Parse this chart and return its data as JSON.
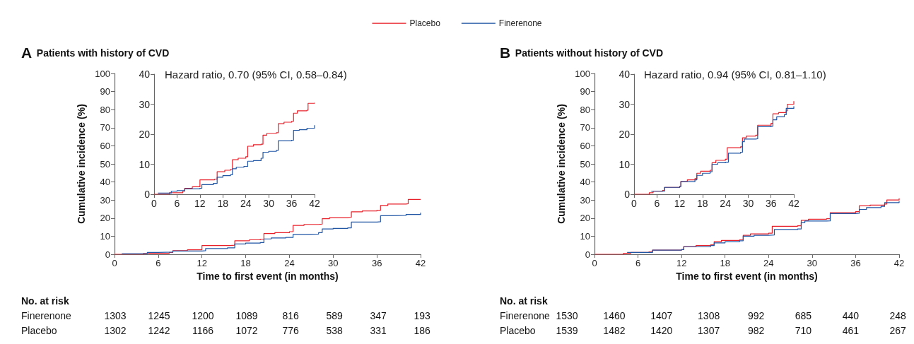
{
  "chart_data": [
    {
      "type": "step",
      "title": "A Patients with history of CVD",
      "xlabel": "Time to first event (in months)",
      "ylabel": "Cumulative incidence (%)",
      "xlim": [
        0,
        42
      ],
      "xticks": [
        0,
        6,
        12,
        18,
        24,
        30,
        36,
        42
      ],
      "ylim": [
        0,
        100
      ],
      "yticks": [
        0,
        10,
        20,
        30,
        40,
        50,
        60,
        70,
        80,
        90,
        100
      ],
      "legend": "top",
      "series": [
        {
          "name": "Placebo",
          "color": "#e8202a",
          "x": [
            0,
            4,
            7.5,
            8,
            10,
            12,
            15.8,
            16.5,
            18.5,
            20,
            20.5,
            22,
            24,
            24.5,
            26,
            28,
            28.5,
            29.5,
            32,
            32.5,
            34,
            36,
            36.5,
            37.5,
            40,
            40.3,
            42
          ],
          "values": [
            0,
            0.5,
            1,
            2,
            2.5,
            4.8,
            5,
            7.5,
            8,
            8.3,
            11.5,
            12,
            12.5,
            16,
            16.5,
            16.7,
            19.7,
            20.3,
            20.5,
            23.5,
            24,
            24.3,
            27,
            27.8,
            28,
            30.3,
            30.5
          ]
        },
        {
          "name": "Finerenone",
          "color": "#2156a5",
          "x": [
            1,
            4.5,
            6,
            8,
            12,
            12.5,
            15.5,
            16.5,
            18,
            20,
            20.5,
            21.5,
            23.5,
            24.5,
            26,
            28,
            28.5,
            30,
            32,
            32.5,
            36,
            36.5,
            38,
            40,
            42
          ],
          "values": [
            0.4,
            1,
            1.2,
            1.8,
            2,
            3.2,
            3.6,
            5.7,
            6.2,
            6.5,
            8.5,
            9,
            9.3,
            11,
            11.2,
            12,
            14,
            14.3,
            14.6,
            17.8,
            18,
            21.3,
            21.5,
            22,
            23
          ]
        }
      ],
      "annotations": [
        "No. at risk",
        "Finerenone",
        "1303",
        "1245",
        "1200",
        "1089",
        "816",
        "589",
        "347",
        "193",
        "Placebo",
        "1302",
        "1242",
        "1166",
        "1072",
        "776",
        "538",
        "331",
        "186"
      ]
    },
    {
      "type": "step",
      "xlim": [
        0,
        42
      ],
      "xticks": [
        0,
        6,
        12,
        18,
        24,
        30,
        36,
        42
      ],
      "ylim": [
        0,
        40
      ],
      "yticks": [
        0,
        10,
        20,
        30,
        40
      ],
      "series": [
        {
          "color": "#e8202a",
          "x": [
            0,
            4,
            7.5,
            8,
            10,
            12,
            15.8,
            16.5,
            18.5,
            20,
            20.5,
            22,
            24,
            24.5,
            26,
            28,
            28.5,
            29.5,
            32,
            32.5,
            34,
            36,
            36.5,
            37.5,
            40,
            40.3,
            42
          ],
          "values": [
            0,
            0.5,
            1,
            2,
            2.5,
            4.8,
            5,
            7.5,
            8,
            8.3,
            11.5,
            12,
            12.5,
            16,
            16.5,
            16.7,
            19.7,
            20.3,
            20.5,
            23.5,
            24,
            24.3,
            27,
            27.8,
            28,
            30.3,
            30.5
          ]
        },
        {
          "color": "#2156a5",
          "x": [
            1,
            4.5,
            6,
            8,
            12,
            12.5,
            15.5,
            16.5,
            18,
            20,
            20.5,
            21.5,
            23.5,
            24.5,
            26,
            28,
            28.5,
            30,
            32,
            32.5,
            36,
            36.5,
            38,
            40,
            42
          ],
          "values": [
            0.4,
            1,
            1.2,
            1.8,
            2,
            3.2,
            3.6,
            5.7,
            6.2,
            6.5,
            8.5,
            9,
            9.3,
            11,
            11.2,
            12,
            14,
            14.3,
            14.6,
            17.8,
            18,
            21.3,
            21.5,
            22,
            23
          ]
        }
      ],
      "annotations": [
        "Hazard ratio, 0.70 (95% CI, 0.58–0.84)"
      ]
    },
    {
      "type": "step",
      "title": "B Patients without history of CVD",
      "xlabel": "Time to first event (in months)",
      "ylabel": "Cumulative incidence (%)",
      "xlim": [
        0,
        42
      ],
      "xticks": [
        0,
        6,
        12,
        18,
        24,
        30,
        36,
        42
      ],
      "ylim": [
        0,
        100
      ],
      "yticks": [
        0,
        10,
        20,
        30,
        40,
        50,
        60,
        70,
        80,
        90,
        100
      ],
      "series": [
        {
          "color": "#e8202a",
          "x": [
            0,
            4,
            5,
            7.5,
            8,
            12,
            12.3,
            14,
            16,
            16.5,
            17.5,
            20,
            20.5,
            21.5,
            24,
            24.5,
            28,
            28.5,
            29.5,
            32,
            32.5,
            36,
            36.5,
            38,
            40,
            40.3,
            42
          ],
          "values": [
            0,
            0.5,
            1,
            1.3,
            2.3,
            2.6,
            4.3,
            4.8,
            5.2,
            7,
            7.7,
            8,
            10.5,
            11.3,
            11.7,
            15.5,
            15.8,
            18.8,
            19.4,
            19.7,
            23,
            23.6,
            26.8,
            27.2,
            27.8,
            30,
            31
          ]
        },
        {
          "color": "#2156a5",
          "x": [
            4.5,
            8,
            12,
            12.3,
            16,
            16.5,
            18,
            20,
            20.5,
            22,
            24,
            24.8,
            28,
            28.5,
            29,
            32,
            32.5,
            36,
            36.5,
            37.5,
            39.5,
            40,
            42
          ],
          "values": [
            1,
            2.3,
            2.6,
            4.2,
            4.8,
            6.3,
            7,
            7.5,
            10,
            10.5,
            10.7,
            13.7,
            14,
            17.5,
            18.4,
            18.5,
            22.5,
            22.7,
            24.8,
            25.8,
            26.5,
            28.6,
            29.3
          ]
        }
      ],
      "annotations": [
        "No. at risk",
        "Finerenone",
        "1530",
        "1460",
        "1407",
        "1308",
        "992",
        "685",
        "440",
        "248",
        "Placebo",
        "1539",
        "1482",
        "1420",
        "1307",
        "982",
        "710",
        "461",
        "267"
      ]
    },
    {
      "type": "step",
      "xlim": [
        0,
        42
      ],
      "xticks": [
        0,
        6,
        12,
        18,
        24,
        30,
        36,
        42
      ],
      "ylim": [
        0,
        40
      ],
      "yticks": [
        0,
        10,
        20,
        30,
        40
      ],
      "series": [
        {
          "color": "#e8202a",
          "x": [
            0,
            4,
            5,
            7.5,
            8,
            12,
            12.3,
            14,
            16,
            16.5,
            17.5,
            20,
            20.5,
            21.5,
            24,
            24.5,
            28,
            28.5,
            29.5,
            32,
            32.5,
            36,
            36.5,
            38,
            40,
            40.3,
            42
          ],
          "values": [
            0,
            0.5,
            1,
            1.3,
            2.3,
            2.6,
            4.3,
            4.8,
            5.2,
            7,
            7.7,
            8,
            10.5,
            11.3,
            11.7,
            15.5,
            15.8,
            18.8,
            19.4,
            19.7,
            23,
            23.6,
            26.8,
            27.2,
            27.8,
            30,
            31
          ]
        },
        {
          "color": "#2156a5",
          "x": [
            4.5,
            8,
            12,
            12.3,
            16,
            16.5,
            18,
            20,
            20.5,
            22,
            24,
            24.8,
            28,
            28.5,
            29,
            32,
            32.5,
            36,
            36.5,
            37.5,
            39.5,
            40,
            42
          ],
          "values": [
            1,
            2.3,
            2.6,
            4.2,
            4.8,
            6.3,
            7,
            7.5,
            10,
            10.5,
            10.7,
            13.7,
            14,
            17.5,
            18.4,
            18.5,
            22.5,
            22.7,
            24.8,
            25.8,
            26.5,
            28.6,
            29.3
          ]
        }
      ],
      "annotations": [
        "Hazard ratio, 0.94 (95% CI, 0.81–1.10)"
      ]
    }
  ]
}
